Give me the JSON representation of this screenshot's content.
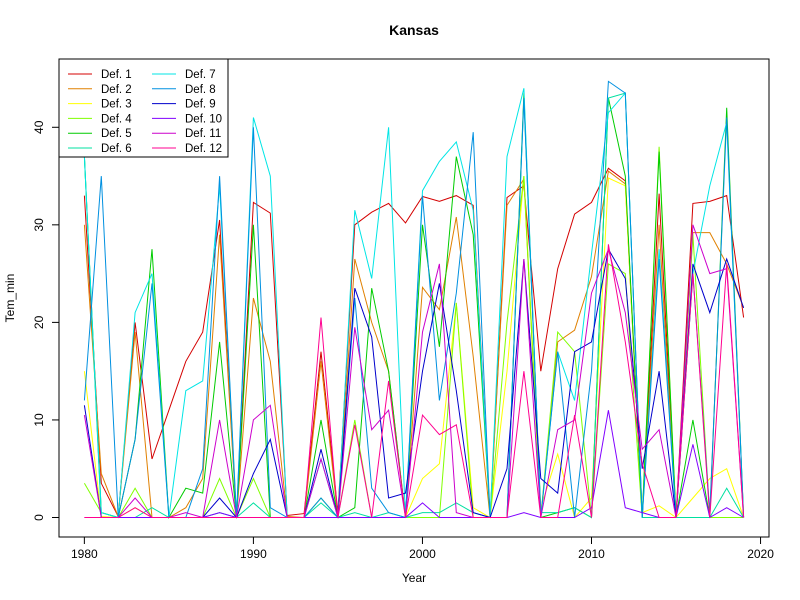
{
  "chart_data": {
    "type": "line",
    "title": "Kansas",
    "xlabel": "Year",
    "ylabel": "Tem_min",
    "xlim": [
      1978.5,
      2020.5
    ],
    "ylim": [
      -2,
      47
    ],
    "x_ticks": [
      "1980",
      "1990",
      "2000",
      "2010",
      "2020"
    ],
    "y_ticks": [
      "0",
      "10",
      "20",
      "30",
      "40"
    ],
    "grid": false,
    "legend_position": "top-left",
    "legend_columns": 2,
    "x": [
      1980,
      1981,
      1982,
      1983,
      1984,
      1985,
      1986,
      1987,
      1988,
      1989,
      1990,
      1991,
      1992,
      1993,
      1994,
      1995,
      1996,
      1997,
      1998,
      1999,
      2000,
      2001,
      2002,
      2003,
      2004,
      2005,
      2006,
      2007,
      2008,
      2009,
      2010,
      2011,
      2012,
      2013,
      2014,
      2015,
      2016,
      2017,
      2018,
      2019
    ],
    "series": [
      {
        "name": "Def. 1",
        "color": "#d40000",
        "values": [
          33,
          3.5,
          0.1,
          20,
          6,
          11,
          16,
          19,
          30.5,
          0,
          32.3,
          31.2,
          0.2,
          0.4,
          17,
          0.5,
          30,
          31.3,
          32.2,
          30.2,
          32.9,
          32.4,
          33,
          32,
          0,
          32.8,
          34,
          15,
          25.5,
          31.1,
          32.3,
          35.8,
          34.5,
          0,
          33.2,
          0,
          32.2,
          32.4,
          33,
          20.5
        ]
      },
      {
        "name": "Def. 2",
        "color": "#e08000",
        "values": [
          30,
          4.5,
          0.1,
          19,
          0,
          0,
          1,
          4,
          29,
          0,
          22.5,
          16,
          0.1,
          0,
          16,
          0,
          26.5,
          20,
          15,
          0,
          23.6,
          21.3,
          30.8,
          16.5,
          0,
          32,
          34.7,
          0,
          18,
          19.2,
          24.7,
          35.5,
          34.2,
          0,
          30,
          0,
          29.2,
          29.2,
          26,
          21.5
        ]
      },
      {
        "name": "Def. 3",
        "color": "#ffff00",
        "values": [
          15,
          0.1,
          0,
          1,
          0,
          0,
          0,
          0,
          0,
          0,
          0,
          0,
          0,
          0,
          0,
          0,
          0,
          0,
          0,
          0,
          4,
          5.5,
          22,
          1,
          0,
          15,
          35,
          1,
          6.5,
          0,
          2,
          34.8,
          34,
          0.5,
          1.2,
          0,
          2,
          4,
          5,
          0
        ]
      },
      {
        "name": "Def. 4",
        "color": "#80ff00",
        "values": [
          3.5,
          0.5,
          0,
          3,
          0,
          0,
          0,
          0,
          4,
          0,
          4,
          0,
          0,
          0,
          2,
          0,
          10,
          0,
          0,
          0,
          0,
          0,
          22,
          0,
          0,
          20,
          35,
          0,
          19,
          17,
          0,
          26,
          25,
          0,
          38,
          0,
          29,
          0,
          0,
          0
        ]
      },
      {
        "name": "Def. 5",
        "color": "#00cc00",
        "values": [
          37,
          0.5,
          0,
          8,
          27.5,
          0,
          3,
          2.5,
          18,
          0,
          30,
          0,
          0,
          0,
          10,
          0,
          1,
          23.5,
          15,
          0,
          30,
          17.5,
          37,
          29,
          0,
          0,
          43.5,
          0,
          0.5,
          1,
          0,
          43,
          35,
          0,
          37.5,
          0,
          10,
          0,
          42,
          0
        ]
      },
      {
        "name": "Def. 6",
        "color": "#00e0a0",
        "values": [
          37,
          0,
          0,
          0,
          1,
          0,
          0,
          0,
          0.5,
          0,
          1.5,
          0,
          0,
          0,
          1.5,
          0,
          0.5,
          0,
          0.5,
          0,
          0.5,
          0.5,
          1.5,
          0.5,
          0,
          0,
          43,
          0.5,
          0.5,
          1,
          0,
          43,
          43.5,
          0,
          0,
          0,
          0,
          0,
          3,
          0
        ]
      },
      {
        "name": "Def. 7",
        "color": "#00e5e5",
        "values": [
          37,
          0.5,
          0,
          21,
          25,
          0,
          13,
          14,
          34,
          0,
          41,
          35,
          0,
          0,
          6,
          0,
          31.5,
          24.5,
          40,
          0,
          33.5,
          36.5,
          38.5,
          31.5,
          0,
          37,
          44,
          0,
          17,
          12,
          27,
          41.5,
          43.5,
          0,
          27.5,
          0,
          25,
          34,
          40.5,
          0
        ]
      },
      {
        "name": "Def. 8",
        "color": "#0090e0",
        "values": [
          12,
          35,
          0,
          8,
          24,
          0,
          0,
          5,
          35,
          0,
          40,
          1,
          0,
          0,
          2,
          0,
          22.5,
          3,
          0.5,
          0,
          33,
          12,
          23,
          39.5,
          0,
          0,
          43,
          0,
          17,
          0,
          15,
          44.7,
          43.5,
          0,
          26.5,
          0,
          25,
          0.5,
          41,
          0
        ]
      },
      {
        "name": "Def. 9",
        "color": "#0000cc",
        "values": [
          11.5,
          0,
          0,
          0,
          0,
          0,
          0,
          0,
          2,
          0,
          4.5,
          8,
          0,
          0,
          7,
          0,
          23.5,
          18.5,
          2,
          2.5,
          15,
          24,
          13,
          0.5,
          0,
          5,
          26.5,
          4,
          2.5,
          17,
          18,
          27.5,
          24.5,
          5,
          15,
          0,
          26,
          21,
          26.5,
          21.5
        ]
      },
      {
        "name": "Def. 10",
        "color": "#8000ff",
        "values": [
          0,
          0,
          0,
          0,
          0,
          0,
          0,
          0,
          0.5,
          0,
          0,
          0,
          0,
          0,
          0,
          0,
          0,
          0,
          0,
          0,
          1.5,
          0,
          0,
          0,
          0,
          0,
          0.5,
          0,
          0,
          0,
          1,
          11,
          1,
          0.5,
          0,
          0,
          7.5,
          0,
          1,
          0
        ]
      },
      {
        "name": "Def. 11",
        "color": "#cc00cc",
        "values": [
          10.5,
          0,
          0,
          2,
          0,
          0,
          0.5,
          0,
          10,
          0,
          10,
          11.5,
          0,
          0,
          6,
          0,
          19.5,
          9,
          11,
          0,
          19,
          26,
          0.5,
          0,
          0,
          0,
          26.5,
          0,
          9,
          10,
          23,
          27.5,
          21,
          7,
          9,
          0,
          30,
          25,
          25.5,
          0
        ]
      },
      {
        "name": "Def. 12",
        "color": "#ff0090",
        "values": [
          0,
          0,
          0,
          1,
          0,
          0,
          0,
          0,
          0,
          0,
          0,
          0,
          0,
          0,
          20.5,
          0,
          9.5,
          0,
          14,
          0,
          10.5,
          8.5,
          9.5,
          0,
          0,
          0,
          15,
          0,
          0,
          10.5,
          0,
          28,
          18,
          5.5,
          0,
          0,
          25,
          0,
          26,
          0
        ]
      }
    ]
  }
}
